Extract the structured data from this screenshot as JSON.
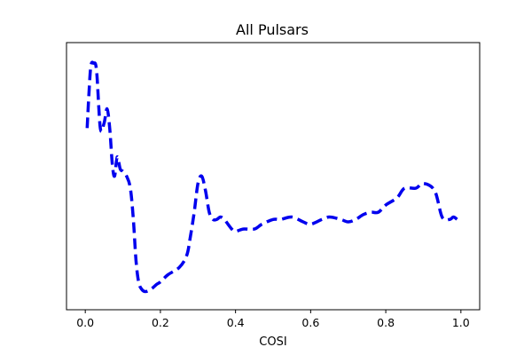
{
  "chart_data": {
    "type": "line",
    "title": "All Pulsars",
    "xlabel": "COSI",
    "ylabel": "",
    "xlim": [
      -0.05,
      1.05
    ],
    "ylim": [
      0,
      1
    ],
    "xticks": [
      0.0,
      0.2,
      0.4,
      0.6,
      0.8,
      1.0
    ],
    "xtick_labels": [
      "0.0",
      "0.2",
      "0.4",
      "0.6",
      "0.8",
      "1.0"
    ],
    "yticks_visible": false,
    "grid": false,
    "series": [
      {
        "color": "#0000ee",
        "linestyle": "dashed",
        "x": [
          0.005,
          0.01,
          0.015,
          0.022,
          0.03,
          0.04,
          0.05,
          0.058,
          0.065,
          0.072,
          0.078,
          0.085,
          0.093,
          0.1,
          0.11,
          0.12,
          0.128,
          0.135,
          0.142,
          0.15,
          0.16,
          0.175,
          0.19,
          0.2,
          0.22,
          0.25,
          0.27,
          0.28,
          0.29,
          0.3,
          0.31,
          0.32,
          0.33,
          0.34,
          0.35,
          0.36,
          0.37,
          0.38,
          0.39,
          0.4,
          0.42,
          0.45,
          0.47,
          0.5,
          0.52,
          0.55,
          0.58,
          0.6,
          0.63,
          0.65,
          0.68,
          0.7,
          0.72,
          0.74,
          0.76,
          0.78,
          0.8,
          0.83,
          0.85,
          0.88,
          0.9,
          0.93,
          0.95,
          0.97,
          0.98,
          0.99,
          0.995
        ],
        "y": [
          0.7,
          0.85,
          0.96,
          0.97,
          0.94,
          0.7,
          0.72,
          0.78,
          0.7,
          0.55,
          0.5,
          0.58,
          0.53,
          0.52,
          0.5,
          0.45,
          0.32,
          0.15,
          0.06,
          0.03,
          0.02,
          0.03,
          0.05,
          0.06,
          0.09,
          0.12,
          0.17,
          0.25,
          0.35,
          0.47,
          0.5,
          0.44,
          0.35,
          0.32,
          0.32,
          0.33,
          0.32,
          0.3,
          0.28,
          0.27,
          0.28,
          0.28,
          0.3,
          0.32,
          0.32,
          0.33,
          0.31,
          0.3,
          0.32,
          0.33,
          0.32,
          0.31,
          0.32,
          0.34,
          0.35,
          0.35,
          0.38,
          0.41,
          0.45,
          0.45,
          0.47,
          0.44,
          0.33,
          0.32,
          0.33,
          0.32,
          0.31
        ]
      }
    ]
  }
}
